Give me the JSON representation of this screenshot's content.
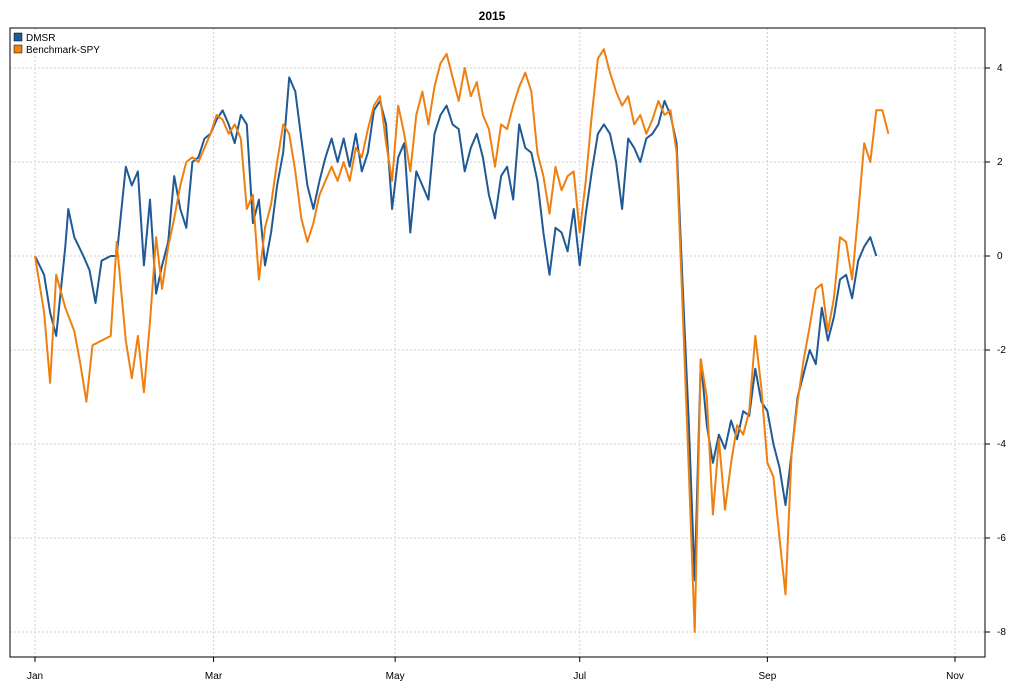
{
  "chart_data": {
    "type": "line",
    "title": "2015",
    "xlabel": "",
    "ylabel": "",
    "ylim": [
      -8.5,
      4.8
    ],
    "xlim": [
      "2015-01-02",
      "2015-11-02"
    ],
    "grid": true,
    "legend_position": "top-left",
    "y_axis_side": "right",
    "x_ticks": [
      {
        "date": "2015-01-02",
        "label": "Jan"
      },
      {
        "date": "2015-03-02",
        "label": "Mar"
      },
      {
        "date": "2015-05-01",
        "label": "May"
      },
      {
        "date": "2015-07-01",
        "label": "Jul"
      },
      {
        "date": "2015-09-01",
        "label": "Sep"
      },
      {
        "date": "2015-11-02",
        "label": "Nov"
      }
    ],
    "y_ticks": [
      4,
      2,
      0,
      -2,
      -4,
      -6,
      -8
    ],
    "series": [
      {
        "name": "DMSR",
        "color": "#1f5a96",
        "points": [
          [
            "2015-01-02",
            0.0
          ],
          [
            "2015-01-05",
            -0.4
          ],
          [
            "2015-01-07",
            -1.2
          ],
          [
            "2015-01-09",
            -1.7
          ],
          [
            "2015-01-12",
            0.2
          ],
          [
            "2015-01-13",
            1.0
          ],
          [
            "2015-01-15",
            0.4
          ],
          [
            "2015-01-18",
            0.0
          ],
          [
            "2015-01-20",
            -0.3
          ],
          [
            "2015-01-22",
            -1.0
          ],
          [
            "2015-01-24",
            -0.1
          ],
          [
            "2015-01-27",
            0.0
          ],
          [
            "2015-01-29",
            0.0
          ],
          [
            "2015-02-01",
            1.9
          ],
          [
            "2015-02-03",
            1.5
          ],
          [
            "2015-02-05",
            1.8
          ],
          [
            "2015-02-07",
            -0.2
          ],
          [
            "2015-02-09",
            1.2
          ],
          [
            "2015-02-11",
            -0.8
          ],
          [
            "2015-02-13",
            -0.2
          ],
          [
            "2015-02-15",
            0.3
          ],
          [
            "2015-02-17",
            1.7
          ],
          [
            "2015-02-19",
            1.0
          ],
          [
            "2015-02-21",
            0.6
          ],
          [
            "2015-02-23",
            2.0
          ],
          [
            "2015-02-25",
            2.1
          ],
          [
            "2015-02-27",
            2.5
          ],
          [
            "2015-03-01",
            2.6
          ],
          [
            "2015-03-03",
            2.9
          ],
          [
            "2015-03-05",
            3.1
          ],
          [
            "2015-03-07",
            2.8
          ],
          [
            "2015-03-09",
            2.4
          ],
          [
            "2015-03-11",
            3.0
          ],
          [
            "2015-03-13",
            2.8
          ],
          [
            "2015-03-15",
            0.7
          ],
          [
            "2015-03-17",
            1.2
          ],
          [
            "2015-03-19",
            -0.2
          ],
          [
            "2015-03-21",
            0.5
          ],
          [
            "2015-03-23",
            1.5
          ],
          [
            "2015-03-25",
            2.2
          ],
          [
            "2015-03-27",
            3.8
          ],
          [
            "2015-03-29",
            3.5
          ],
          [
            "2015-03-31",
            2.5
          ],
          [
            "2015-04-02",
            1.5
          ],
          [
            "2015-04-04",
            1.0
          ],
          [
            "2015-04-06",
            1.6
          ],
          [
            "2015-04-08",
            2.1
          ],
          [
            "2015-04-10",
            2.5
          ],
          [
            "2015-04-12",
            2.0
          ],
          [
            "2015-04-14",
            2.5
          ],
          [
            "2015-04-16",
            1.9
          ],
          [
            "2015-04-18",
            2.6
          ],
          [
            "2015-04-20",
            1.8
          ],
          [
            "2015-04-22",
            2.2
          ],
          [
            "2015-04-24",
            3.1
          ],
          [
            "2015-04-26",
            3.3
          ],
          [
            "2015-04-28",
            2.8
          ],
          [
            "2015-04-30",
            1.0
          ],
          [
            "2015-05-02",
            2.1
          ],
          [
            "2015-05-04",
            2.4
          ],
          [
            "2015-05-06",
            0.5
          ],
          [
            "2015-05-08",
            1.8
          ],
          [
            "2015-05-10",
            1.5
          ],
          [
            "2015-05-12",
            1.2
          ],
          [
            "2015-05-14",
            2.6
          ],
          [
            "2015-05-16",
            3.0
          ],
          [
            "2015-05-18",
            3.2
          ],
          [
            "2015-05-20",
            2.8
          ],
          [
            "2015-05-22",
            2.7
          ],
          [
            "2015-05-24",
            1.8
          ],
          [
            "2015-05-26",
            2.3
          ],
          [
            "2015-05-28",
            2.6
          ],
          [
            "2015-05-30",
            2.1
          ],
          [
            "2015-06-01",
            1.3
          ],
          [
            "2015-06-03",
            0.8
          ],
          [
            "2015-06-05",
            1.7
          ],
          [
            "2015-06-07",
            1.9
          ],
          [
            "2015-06-09",
            1.2
          ],
          [
            "2015-06-11",
            2.8
          ],
          [
            "2015-06-13",
            2.3
          ],
          [
            "2015-06-15",
            2.2
          ],
          [
            "2015-06-17",
            1.6
          ],
          [
            "2015-06-19",
            0.5
          ],
          [
            "2015-06-21",
            -0.4
          ],
          [
            "2015-06-23",
            0.6
          ],
          [
            "2015-06-25",
            0.5
          ],
          [
            "2015-06-27",
            0.1
          ],
          [
            "2015-06-29",
            1.0
          ],
          [
            "2015-07-01",
            -0.2
          ],
          [
            "2015-07-03",
            0.9
          ],
          [
            "2015-07-05",
            1.8
          ],
          [
            "2015-07-07",
            2.6
          ],
          [
            "2015-07-09",
            2.8
          ],
          [
            "2015-07-11",
            2.6
          ],
          [
            "2015-07-13",
            2.0
          ],
          [
            "2015-07-15",
            1.0
          ],
          [
            "2015-07-17",
            2.5
          ],
          [
            "2015-07-19",
            2.3
          ],
          [
            "2015-07-21",
            2.0
          ],
          [
            "2015-07-23",
            2.5
          ],
          [
            "2015-07-25",
            2.6
          ],
          [
            "2015-07-27",
            2.8
          ],
          [
            "2015-07-29",
            3.3
          ],
          [
            "2015-07-31",
            3.0
          ],
          [
            "2015-08-02",
            2.4
          ],
          [
            "2015-08-04",
            -0.6
          ],
          [
            "2015-08-06",
            -3.5
          ],
          [
            "2015-08-08",
            -6.9
          ],
          [
            "2015-08-10",
            -2.2
          ],
          [
            "2015-08-12",
            -3.6
          ],
          [
            "2015-08-14",
            -4.4
          ],
          [
            "2015-08-16",
            -3.8
          ],
          [
            "2015-08-18",
            -4.1
          ],
          [
            "2015-08-20",
            -3.5
          ],
          [
            "2015-08-22",
            -3.9
          ],
          [
            "2015-08-24",
            -3.3
          ],
          [
            "2015-08-26",
            -3.4
          ],
          [
            "2015-08-28",
            -2.4
          ],
          [
            "2015-08-30",
            -3.1
          ],
          [
            "2015-09-01",
            -3.3
          ],
          [
            "2015-09-03",
            -4.0
          ],
          [
            "2015-09-05",
            -4.5
          ],
          [
            "2015-09-07",
            -5.3
          ],
          [
            "2015-09-09",
            -4.2
          ],
          [
            "2015-09-11",
            -3.0
          ],
          [
            "2015-09-13",
            -2.5
          ],
          [
            "2015-09-15",
            -2.0
          ],
          [
            "2015-09-17",
            -2.3
          ],
          [
            "2015-09-19",
            -1.1
          ],
          [
            "2015-09-21",
            -1.8
          ],
          [
            "2015-09-23",
            -1.3
          ],
          [
            "2015-09-25",
            -0.5
          ],
          [
            "2015-09-27",
            -0.4
          ],
          [
            "2015-09-29",
            -0.9
          ],
          [
            "2015-10-01",
            -0.1
          ],
          [
            "2015-10-03",
            0.2
          ],
          [
            "2015-10-05",
            0.4
          ],
          [
            "2015-10-07",
            0.0
          ]
        ]
      },
      {
        "name": "Benchmark-SPY",
        "color": "#ef8010",
        "points": [
          [
            "2015-01-02",
            0.0
          ],
          [
            "2015-01-05",
            -1.2
          ],
          [
            "2015-01-07",
            -2.7
          ],
          [
            "2015-01-09",
            -0.4
          ],
          [
            "2015-01-12",
            -1.1
          ],
          [
            "2015-01-15",
            -1.6
          ],
          [
            "2015-01-17",
            -2.3
          ],
          [
            "2015-01-19",
            -3.1
          ],
          [
            "2015-01-21",
            -1.9
          ],
          [
            "2015-01-24",
            -1.8
          ],
          [
            "2015-01-27",
            -1.7
          ],
          [
            "2015-01-29",
            0.3
          ],
          [
            "2015-02-01",
            -1.8
          ],
          [
            "2015-02-03",
            -2.6
          ],
          [
            "2015-02-05",
            -1.7
          ],
          [
            "2015-02-07",
            -2.9
          ],
          [
            "2015-02-09",
            -1.4
          ],
          [
            "2015-02-11",
            0.4
          ],
          [
            "2015-02-13",
            -0.7
          ],
          [
            "2015-02-15",
            0.2
          ],
          [
            "2015-02-17",
            0.8
          ],
          [
            "2015-02-19",
            1.5
          ],
          [
            "2015-02-21",
            2.0
          ],
          [
            "2015-02-23",
            2.1
          ],
          [
            "2015-02-25",
            2.0
          ],
          [
            "2015-02-27",
            2.3
          ],
          [
            "2015-03-01",
            2.6
          ],
          [
            "2015-03-03",
            3.0
          ],
          [
            "2015-03-05",
            2.9
          ],
          [
            "2015-03-07",
            2.6
          ],
          [
            "2015-03-09",
            2.8
          ],
          [
            "2015-03-11",
            2.5
          ],
          [
            "2015-03-13",
            1.0
          ],
          [
            "2015-03-15",
            1.3
          ],
          [
            "2015-03-17",
            -0.5
          ],
          [
            "2015-03-19",
            0.6
          ],
          [
            "2015-03-21",
            1.1
          ],
          [
            "2015-03-23",
            2.0
          ],
          [
            "2015-03-25",
            2.8
          ],
          [
            "2015-03-27",
            2.6
          ],
          [
            "2015-03-29",
            1.8
          ],
          [
            "2015-03-31",
            0.8
          ],
          [
            "2015-04-02",
            0.3
          ],
          [
            "2015-04-04",
            0.7
          ],
          [
            "2015-04-06",
            1.3
          ],
          [
            "2015-04-08",
            1.6
          ],
          [
            "2015-04-10",
            1.9
          ],
          [
            "2015-04-12",
            1.6
          ],
          [
            "2015-04-14",
            2.0
          ],
          [
            "2015-04-16",
            1.6
          ],
          [
            "2015-04-18",
            2.3
          ],
          [
            "2015-04-20",
            2.1
          ],
          [
            "2015-04-22",
            2.7
          ],
          [
            "2015-04-24",
            3.2
          ],
          [
            "2015-04-26",
            3.4
          ],
          [
            "2015-04-28",
            2.4
          ],
          [
            "2015-04-30",
            1.6
          ],
          [
            "2015-05-02",
            3.2
          ],
          [
            "2015-05-04",
            2.6
          ],
          [
            "2015-05-06",
            1.8
          ],
          [
            "2015-05-08",
            3.0
          ],
          [
            "2015-05-10",
            3.5
          ],
          [
            "2015-05-12",
            2.8
          ],
          [
            "2015-05-14",
            3.6
          ],
          [
            "2015-05-16",
            4.1
          ],
          [
            "2015-05-18",
            4.3
          ],
          [
            "2015-05-20",
            3.8
          ],
          [
            "2015-05-22",
            3.3
          ],
          [
            "2015-05-24",
            4.0
          ],
          [
            "2015-05-26",
            3.4
          ],
          [
            "2015-05-28",
            3.7
          ],
          [
            "2015-05-30",
            3.0
          ],
          [
            "2015-06-01",
            2.7
          ],
          [
            "2015-06-03",
            1.9
          ],
          [
            "2015-06-05",
            2.8
          ],
          [
            "2015-06-07",
            2.7
          ],
          [
            "2015-06-09",
            3.2
          ],
          [
            "2015-06-11",
            3.6
          ],
          [
            "2015-06-13",
            3.9
          ],
          [
            "2015-06-15",
            3.5
          ],
          [
            "2015-06-17",
            2.2
          ],
          [
            "2015-06-19",
            1.7
          ],
          [
            "2015-06-21",
            0.9
          ],
          [
            "2015-06-23",
            1.9
          ],
          [
            "2015-06-25",
            1.4
          ],
          [
            "2015-06-27",
            1.7
          ],
          [
            "2015-06-29",
            1.8
          ],
          [
            "2015-07-01",
            0.5
          ],
          [
            "2015-07-03",
            1.6
          ],
          [
            "2015-07-05",
            3.0
          ],
          [
            "2015-07-07",
            4.2
          ],
          [
            "2015-07-09",
            4.4
          ],
          [
            "2015-07-11",
            3.9
          ],
          [
            "2015-07-13",
            3.5
          ],
          [
            "2015-07-15",
            3.2
          ],
          [
            "2015-07-17",
            3.4
          ],
          [
            "2015-07-19",
            2.8
          ],
          [
            "2015-07-21",
            3.0
          ],
          [
            "2015-07-23",
            2.6
          ],
          [
            "2015-07-25",
            2.9
          ],
          [
            "2015-07-27",
            3.3
          ],
          [
            "2015-07-29",
            3.0
          ],
          [
            "2015-07-31",
            3.1
          ],
          [
            "2015-08-02",
            2.2
          ],
          [
            "2015-08-04",
            -1.1
          ],
          [
            "2015-08-06",
            -4.5
          ],
          [
            "2015-08-08",
            -8.0
          ],
          [
            "2015-08-10",
            -2.2
          ],
          [
            "2015-08-12",
            -3.0
          ],
          [
            "2015-08-14",
            -5.5
          ],
          [
            "2015-08-16",
            -3.9
          ],
          [
            "2015-08-18",
            -5.4
          ],
          [
            "2015-08-20",
            -4.4
          ],
          [
            "2015-08-22",
            -3.6
          ],
          [
            "2015-08-24",
            -3.8
          ],
          [
            "2015-08-26",
            -3.3
          ],
          [
            "2015-08-28",
            -1.7
          ],
          [
            "2015-08-30",
            -2.8
          ],
          [
            "2015-09-01",
            -4.4
          ],
          [
            "2015-09-03",
            -4.7
          ],
          [
            "2015-09-05",
            -6.0
          ],
          [
            "2015-09-07",
            -7.2
          ],
          [
            "2015-09-09",
            -4.2
          ],
          [
            "2015-09-11",
            -3.1
          ],
          [
            "2015-09-13",
            -2.2
          ],
          [
            "2015-09-15",
            -1.5
          ],
          [
            "2015-09-17",
            -0.7
          ],
          [
            "2015-09-19",
            -0.6
          ],
          [
            "2015-09-21",
            -1.6
          ],
          [
            "2015-09-23",
            -0.9
          ],
          [
            "2015-09-25",
            0.4
          ],
          [
            "2015-09-27",
            0.3
          ],
          [
            "2015-09-29",
            -0.5
          ],
          [
            "2015-10-01",
            0.9
          ],
          [
            "2015-10-03",
            2.4
          ],
          [
            "2015-10-05",
            2.0
          ],
          [
            "2015-10-07",
            3.1
          ],
          [
            "2015-10-09",
            3.1
          ],
          [
            "2015-10-11",
            2.6
          ]
        ]
      }
    ]
  }
}
